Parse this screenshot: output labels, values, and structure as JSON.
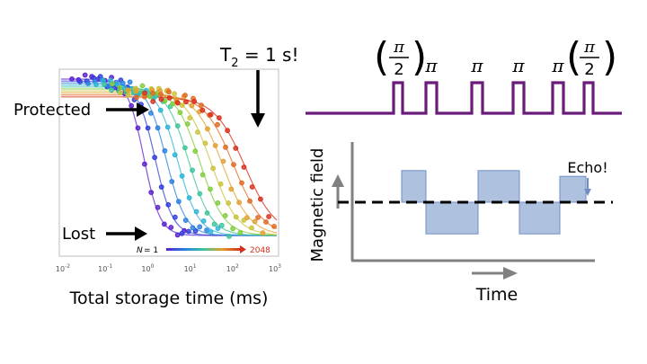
{
  "left_panel": {
    "annotations": {
      "t2": "T",
      "t2_sub": "2",
      "t2_value": " = 1 s!",
      "protected": "Protected",
      "lost": "Lost"
    },
    "legend": {
      "n_label": "N",
      "n_start": " = 1",
      "n_end": "2048"
    },
    "x_axis": {
      "title": "Total storage time (ms)",
      "ticks": [
        {
          "base": "10",
          "exp": "-2"
        },
        {
          "base": "10",
          "exp": "-1"
        },
        {
          "base": "10",
          "exp": "0"
        },
        {
          "base": "10",
          "exp": "1"
        },
        {
          "base": "10",
          "exp": "2"
        },
        {
          "base": "10",
          "exp": "3"
        }
      ],
      "scale": "log"
    },
    "colors": [
      "#5a1fd0",
      "#2f3fd8",
      "#2b7fe0",
      "#28b4d8",
      "#3cc39a",
      "#7fcc3a",
      "#c9c23a",
      "#e0a030",
      "#e06a22",
      "#d8301c"
    ]
  },
  "pulse_sequence": {
    "pulses": [
      {
        "label": "π",
        "fraction": "2",
        "type": "half"
      },
      {
        "label": "π",
        "type": "full"
      },
      {
        "label": "π",
        "type": "full"
      },
      {
        "label": "π",
        "type": "full"
      },
      {
        "label": "π",
        "type": "full"
      },
      {
        "label": "π",
        "fraction": "2",
        "type": "half"
      }
    ],
    "color": "#6b1b7a"
  },
  "field_plot": {
    "y_label": "Magnetic field",
    "x_label": "Time",
    "echo_label": "Echo!",
    "segments": [
      0.55,
      -0.55,
      0.55,
      -0.55,
      0.45
    ],
    "bar_color": "#aec2e0",
    "bar_stroke": "#6f8fc4",
    "axis_color": "#808080"
  }
}
